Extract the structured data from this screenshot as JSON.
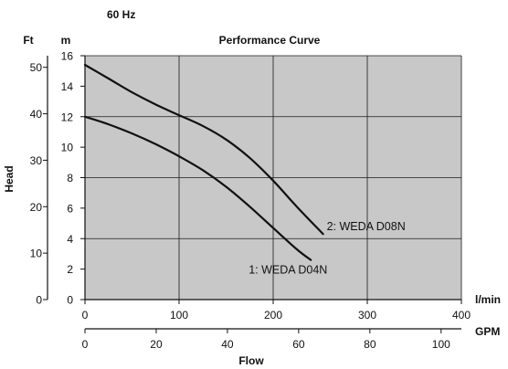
{
  "header": {
    "frequency": "60 Hz"
  },
  "chart_data": {
    "type": "line",
    "title": "Performance Curve",
    "ylabel": "Head",
    "xlabel": "Flow",
    "grid": true,
    "colors": {
      "plot_background": "#c8c8c8",
      "curve": "#111111",
      "grid": "#1a1a1a"
    },
    "axes": {
      "y_m": {
        "unit": "m",
        "range": [
          0,
          16
        ],
        "ticks": [
          0,
          2,
          4,
          6,
          8,
          10,
          12,
          14,
          16
        ]
      },
      "y_ft": {
        "unit": "Ft",
        "range": [
          0,
          52.5
        ],
        "ticks": [
          0,
          10,
          20,
          30,
          40,
          50
        ]
      },
      "x_lmin": {
        "unit": "l/min",
        "range": [
          0,
          400
        ],
        "ticks": [
          0,
          100,
          200,
          300,
          400
        ]
      },
      "x_gpm": {
        "unit": "GPM",
        "range": [
          0,
          105.7
        ],
        "ticks": [
          0,
          20,
          40,
          60,
          80,
          100
        ]
      }
    },
    "series": [
      {
        "name": "1: WEDA D04N",
        "x_unit": "l/min",
        "y_unit": "m",
        "points": [
          [
            0,
            12.0
          ],
          [
            25,
            11.5
          ],
          [
            50,
            10.9
          ],
          [
            75,
            10.2
          ],
          [
            100,
            9.4
          ],
          [
            125,
            8.5
          ],
          [
            150,
            7.4
          ],
          [
            175,
            6.1
          ],
          [
            200,
            4.7
          ],
          [
            225,
            3.3
          ],
          [
            240,
            2.6
          ]
        ]
      },
      {
        "name": "2: WEDA D08N",
        "x_unit": "l/min",
        "y_unit": "m",
        "points": [
          [
            0,
            15.4
          ],
          [
            25,
            14.5
          ],
          [
            50,
            13.6
          ],
          [
            75,
            12.8
          ],
          [
            100,
            12.1
          ],
          [
            125,
            11.4
          ],
          [
            150,
            10.5
          ],
          [
            175,
            9.3
          ],
          [
            200,
            7.8
          ],
          [
            225,
            6.1
          ],
          [
            253,
            4.3
          ]
        ]
      }
    ]
  }
}
